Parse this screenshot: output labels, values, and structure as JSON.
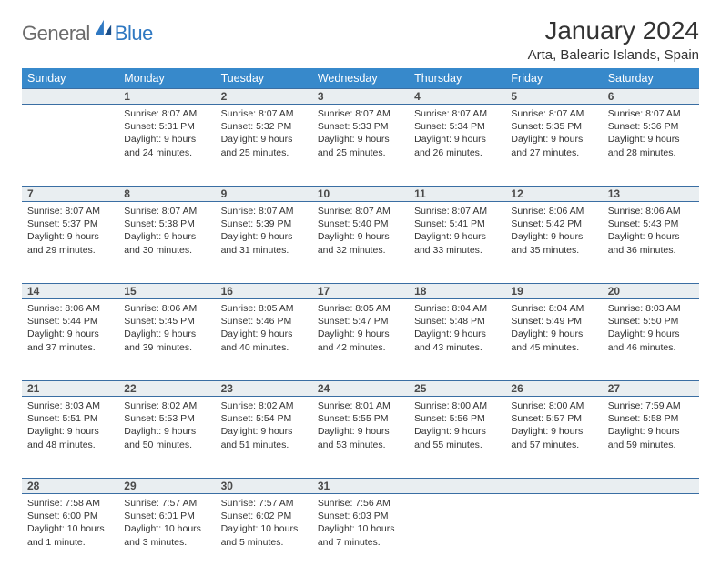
{
  "brand": {
    "part1": "General",
    "part2": "Blue"
  },
  "header": {
    "title": "January 2024",
    "location": "Arta, Balearic Islands, Spain"
  },
  "colors": {
    "header_bg": "#3789cb",
    "header_text": "#ffffff",
    "daynum_bg": "#e9eef1",
    "daynum_border": "#3a6ea3",
    "body_text": "#333333",
    "brand_gray": "#6b6b6b",
    "brand_blue": "#2f78c2",
    "page_bg": "#ffffff"
  },
  "weekdays": [
    "Sunday",
    "Monday",
    "Tuesday",
    "Wednesday",
    "Thursday",
    "Friday",
    "Saturday"
  ],
  "weeks": [
    [
      null,
      {
        "n": "1",
        "sr": "8:07 AM",
        "ss": "5:31 PM",
        "dl": "9 hours and 24 minutes."
      },
      {
        "n": "2",
        "sr": "8:07 AM",
        "ss": "5:32 PM",
        "dl": "9 hours and 25 minutes."
      },
      {
        "n": "3",
        "sr": "8:07 AM",
        "ss": "5:33 PM",
        "dl": "9 hours and 25 minutes."
      },
      {
        "n": "4",
        "sr": "8:07 AM",
        "ss": "5:34 PM",
        "dl": "9 hours and 26 minutes."
      },
      {
        "n": "5",
        "sr": "8:07 AM",
        "ss": "5:35 PM",
        "dl": "9 hours and 27 minutes."
      },
      {
        "n": "6",
        "sr": "8:07 AM",
        "ss": "5:36 PM",
        "dl": "9 hours and 28 minutes."
      }
    ],
    [
      {
        "n": "7",
        "sr": "8:07 AM",
        "ss": "5:37 PM",
        "dl": "9 hours and 29 minutes."
      },
      {
        "n": "8",
        "sr": "8:07 AM",
        "ss": "5:38 PM",
        "dl": "9 hours and 30 minutes."
      },
      {
        "n": "9",
        "sr": "8:07 AM",
        "ss": "5:39 PM",
        "dl": "9 hours and 31 minutes."
      },
      {
        "n": "10",
        "sr": "8:07 AM",
        "ss": "5:40 PM",
        "dl": "9 hours and 32 minutes."
      },
      {
        "n": "11",
        "sr": "8:07 AM",
        "ss": "5:41 PM",
        "dl": "9 hours and 33 minutes."
      },
      {
        "n": "12",
        "sr": "8:06 AM",
        "ss": "5:42 PM",
        "dl": "9 hours and 35 minutes."
      },
      {
        "n": "13",
        "sr": "8:06 AM",
        "ss": "5:43 PM",
        "dl": "9 hours and 36 minutes."
      }
    ],
    [
      {
        "n": "14",
        "sr": "8:06 AM",
        "ss": "5:44 PM",
        "dl": "9 hours and 37 minutes."
      },
      {
        "n": "15",
        "sr": "8:06 AM",
        "ss": "5:45 PM",
        "dl": "9 hours and 39 minutes."
      },
      {
        "n": "16",
        "sr": "8:05 AM",
        "ss": "5:46 PM",
        "dl": "9 hours and 40 minutes."
      },
      {
        "n": "17",
        "sr": "8:05 AM",
        "ss": "5:47 PM",
        "dl": "9 hours and 42 minutes."
      },
      {
        "n": "18",
        "sr": "8:04 AM",
        "ss": "5:48 PM",
        "dl": "9 hours and 43 minutes."
      },
      {
        "n": "19",
        "sr": "8:04 AM",
        "ss": "5:49 PM",
        "dl": "9 hours and 45 minutes."
      },
      {
        "n": "20",
        "sr": "8:03 AM",
        "ss": "5:50 PM",
        "dl": "9 hours and 46 minutes."
      }
    ],
    [
      {
        "n": "21",
        "sr": "8:03 AM",
        "ss": "5:51 PM",
        "dl": "9 hours and 48 minutes."
      },
      {
        "n": "22",
        "sr": "8:02 AM",
        "ss": "5:53 PM",
        "dl": "9 hours and 50 minutes."
      },
      {
        "n": "23",
        "sr": "8:02 AM",
        "ss": "5:54 PM",
        "dl": "9 hours and 51 minutes."
      },
      {
        "n": "24",
        "sr": "8:01 AM",
        "ss": "5:55 PM",
        "dl": "9 hours and 53 minutes."
      },
      {
        "n": "25",
        "sr": "8:00 AM",
        "ss": "5:56 PM",
        "dl": "9 hours and 55 minutes."
      },
      {
        "n": "26",
        "sr": "8:00 AM",
        "ss": "5:57 PM",
        "dl": "9 hours and 57 minutes."
      },
      {
        "n": "27",
        "sr": "7:59 AM",
        "ss": "5:58 PM",
        "dl": "9 hours and 59 minutes."
      }
    ],
    [
      {
        "n": "28",
        "sr": "7:58 AM",
        "ss": "6:00 PM",
        "dl": "10 hours and 1 minute."
      },
      {
        "n": "29",
        "sr": "7:57 AM",
        "ss": "6:01 PM",
        "dl": "10 hours and 3 minutes."
      },
      {
        "n": "30",
        "sr": "7:57 AM",
        "ss": "6:02 PM",
        "dl": "10 hours and 5 minutes."
      },
      {
        "n": "31",
        "sr": "7:56 AM",
        "ss": "6:03 PM",
        "dl": "10 hours and 7 minutes."
      },
      null,
      null,
      null
    ]
  ],
  "labels": {
    "sunrise": "Sunrise:",
    "sunset": "Sunset:",
    "daylight": "Daylight:"
  }
}
